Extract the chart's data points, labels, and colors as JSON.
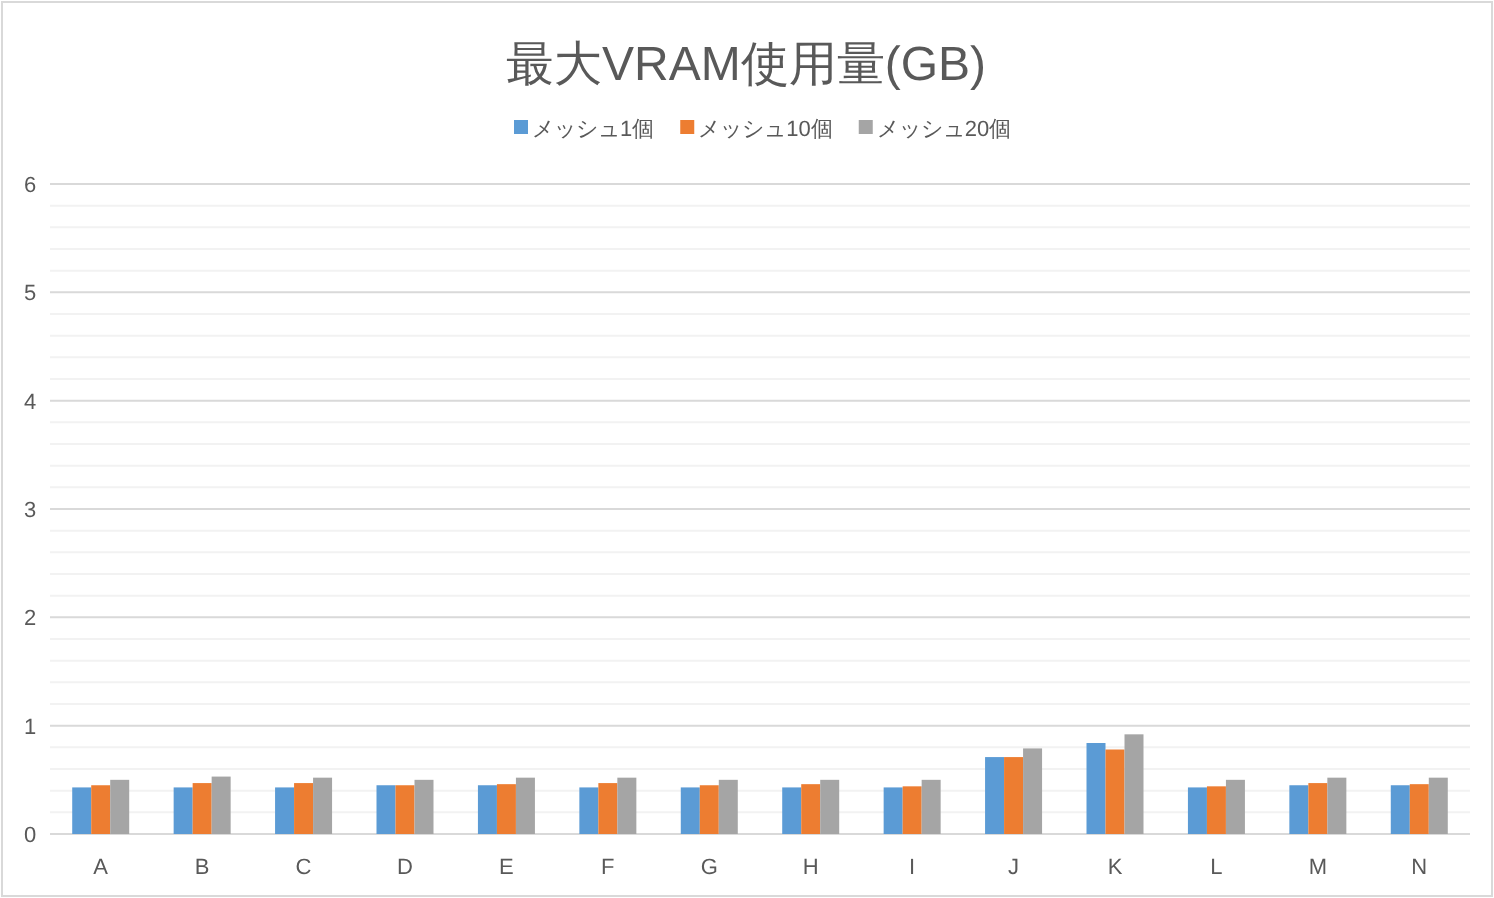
{
  "chart_data": {
    "type": "bar",
    "title": "最大VRAM使用量(GB)",
    "categories": [
      "A",
      "B",
      "C",
      "D",
      "E",
      "F",
      "G",
      "H",
      "I",
      "J",
      "K",
      "L",
      "M",
      "N"
    ],
    "series": [
      {
        "name": "メッシュ1個",
        "color": "#5b9bd5",
        "values": [
          0.43,
          0.43,
          0.43,
          0.45,
          0.45,
          0.43,
          0.43,
          0.43,
          0.43,
          0.71,
          0.84,
          0.43,
          0.45,
          0.45
        ]
      },
      {
        "name": "メッシュ10個",
        "color": "#ed7d31",
        "values": [
          0.45,
          0.47,
          0.47,
          0.45,
          0.46,
          0.47,
          0.45,
          0.46,
          0.44,
          0.71,
          0.78,
          0.44,
          0.47,
          0.46
        ]
      },
      {
        "name": "メッシュ20個",
        "color": "#a5a5a5",
        "values": [
          0.5,
          0.53,
          0.52,
          0.5,
          0.52,
          0.52,
          0.5,
          0.5,
          0.5,
          0.79,
          0.92,
          0.5,
          0.52,
          0.52
        ]
      }
    ],
    "ylim": [
      0,
      6
    ],
    "yticks": [
      0,
      1,
      2,
      3,
      4,
      5,
      6
    ],
    "grid": "y",
    "legend": "top"
  }
}
